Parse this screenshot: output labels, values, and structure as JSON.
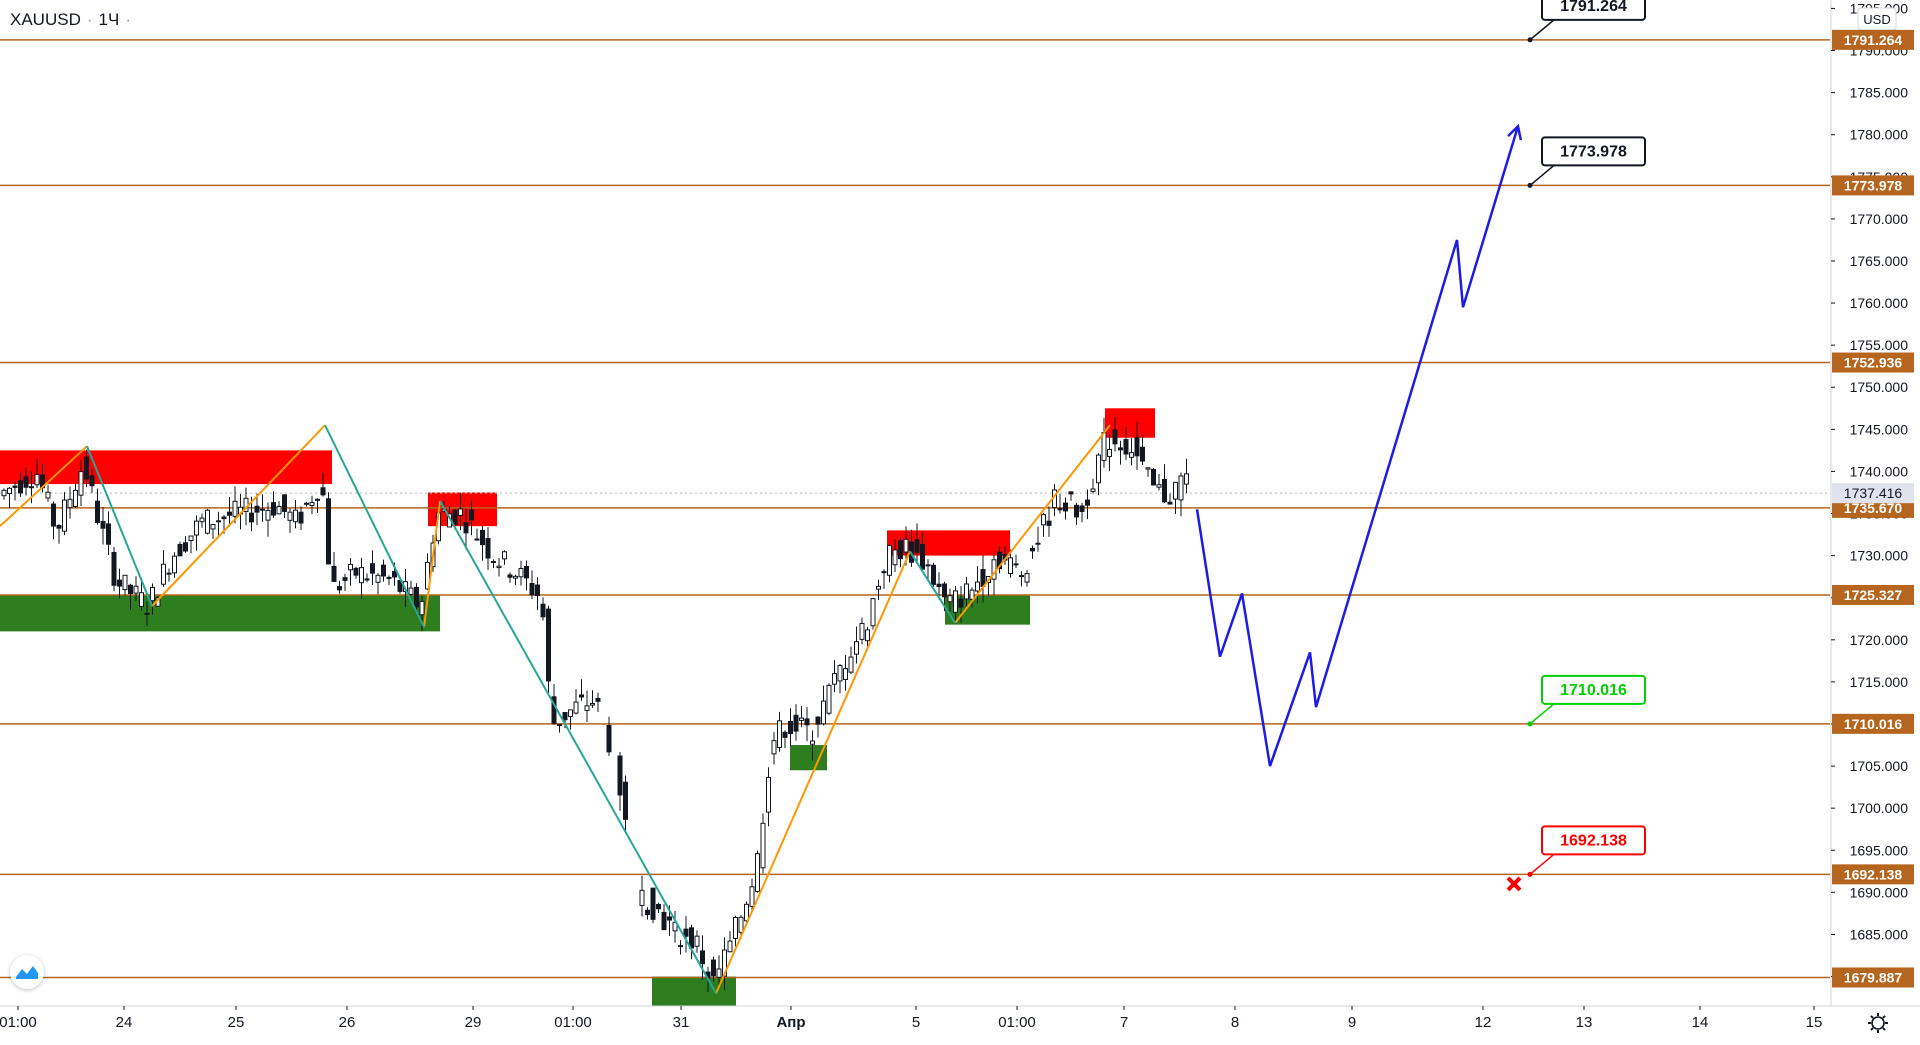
{
  "header": {
    "symbol": "XAUUSD",
    "interval": "1Ч",
    "currency": "USD"
  },
  "colors": {
    "level_line": "#b5651d",
    "level_label_bg": "#b5651d",
    "bull_candle": "#ffffff",
    "bear_candle": "#131722",
    "supply_zone": "#ff0000",
    "demand_zone": "#2e7d1e",
    "wave_orange": "#ff9800",
    "wave_teal": "#26a69a",
    "forecast_blue": "#1c1ce6",
    "target_green": "#00d000",
    "stop_red": "#ff0000"
  },
  "chart_data": {
    "type": "candlestick",
    "y_axis": {
      "range": [
        1676.5,
        1796.0
      ],
      "ticks": [
        1680,
        1685,
        1690,
        1695,
        1700,
        1705,
        1710,
        1715,
        1720,
        1725,
        1730,
        1735,
        1740,
        1745,
        1750,
        1755,
        1760,
        1765,
        1770,
        1775,
        1780,
        1785,
        1790,
        1795
      ],
      "tick_labels": [
        "1680.000",
        "1685.000",
        "1690.000",
        "1695.000",
        "1700.000",
        "1705.000",
        "1710.000",
        "1715.000",
        "1720.000",
        "1725.000",
        "1730.000",
        "1735.000",
        "1740.000",
        "1745.000",
        "1750.000",
        "1755.000",
        "1760.000",
        "1765.000",
        "1770.000",
        "1775.000",
        "1780.000",
        "1785.000",
        "1790.000",
        "1795.000"
      ]
    },
    "x_axis": {
      "tick_labels": [
        "01:00",
        "24",
        "25",
        "26",
        "29",
        "01:00",
        "31",
        "Апр",
        "5",
        "01:00",
        "7",
        "8",
        "9",
        "12",
        "13",
        "14",
        "15"
      ]
    },
    "last_price": {
      "value": 1737.416,
      "label": "1737.416"
    },
    "levels": [
      {
        "value": 1791.264,
        "label": "1791.264"
      },
      {
        "value": 1773.978,
        "label": "1773.978"
      },
      {
        "value": 1752.936,
        "label": "1752.936"
      },
      {
        "value": 1735.67,
        "label": "1735.670"
      },
      {
        "value": 1725.327,
        "label": "1725.327"
      },
      {
        "value": 1710.016,
        "label": "1710.016"
      },
      {
        "value": 1692.138,
        "label": "1692.138"
      },
      {
        "value": 1679.887,
        "label": "1679.887"
      }
    ],
    "callouts": [
      {
        "value": 1791.264,
        "text": "1791.264",
        "kind": "target"
      },
      {
        "value": 1773.978,
        "text": "1773.978",
        "kind": "target"
      },
      {
        "value": 1710.016,
        "text": "1710.016",
        "kind": "entry"
      },
      {
        "value": 1692.138,
        "text": "1692.138",
        "kind": "stop"
      }
    ],
    "zones": [
      {
        "kind": "supply",
        "t0": 0,
        "t1": 332,
        "top": 1742.5,
        "bottom": 1738.5
      },
      {
        "kind": "demand",
        "t0": 0,
        "t1": 440,
        "top": 1725.3,
        "bottom": 1721.0
      },
      {
        "kind": "supply",
        "t0": 428,
        "t1": 497,
        "top": 1737.5,
        "bottom": 1733.5
      },
      {
        "kind": "supply",
        "t0": 887,
        "t1": 1010,
        "top": 1733.0,
        "bottom": 1730.0
      },
      {
        "kind": "demand",
        "t0": 945,
        "t1": 1030,
        "top": 1725.3,
        "bottom": 1721.8
      },
      {
        "kind": "demand",
        "t0": 790,
        "t1": 827,
        "top": 1707.5,
        "bottom": 1704.5
      },
      {
        "kind": "demand",
        "t0": 652,
        "t1": 736,
        "top": 1680.0,
        "bottom": 1676.5
      },
      {
        "kind": "supply",
        "t0": 1105,
        "t1": 1155,
        "top": 1747.5,
        "bottom": 1744.0
      }
    ],
    "waves": {
      "orange": [
        {
          "points": [
            [
              0,
              1733.5
            ],
            [
              87,
              1743.0
            ]
          ]
        },
        {
          "points": [
            [
              152,
              1724.0
            ],
            [
              325,
              1745.5
            ]
          ]
        },
        {
          "points": [
            [
              424,
              1721.5
            ],
            [
              440,
              1736.5
            ]
          ]
        },
        {
          "points": [
            [
              716,
              1678.0
            ],
            [
              910,
              1730.5
            ]
          ]
        },
        {
          "points": [
            [
              955,
              1722.0
            ],
            [
              1110,
              1745.5
            ]
          ]
        }
      ],
      "teal": [
        {
          "points": [
            [
              87,
              1743.0
            ],
            [
              152,
              1724.0
            ]
          ]
        },
        {
          "points": [
            [
              325,
              1745.5
            ],
            [
              424,
              1721.5
            ]
          ]
        },
        {
          "points": [
            [
              440,
              1736.5
            ],
            [
              716,
              1678.0
            ]
          ]
        },
        {
          "points": [
            [
              910,
              1730.5
            ],
            [
              955,
              1722.0
            ]
          ]
        }
      ]
    },
    "forecast_path": [
      [
        1197,
        1735.5
      ],
      [
        1220,
        1718.0
      ],
      [
        1242,
        1725.5
      ],
      [
        1270,
        1705.0
      ],
      [
        1310,
        1718.5
      ],
      [
        1316,
        1712.0
      ],
      [
        1457,
        1767.5
      ],
      [
        1463,
        1759.5
      ],
      [
        1518,
        1781.0
      ]
    ],
    "candles": [],
    "stop_marker": {
      "value": 1691.0,
      "t": 1514
    }
  }
}
